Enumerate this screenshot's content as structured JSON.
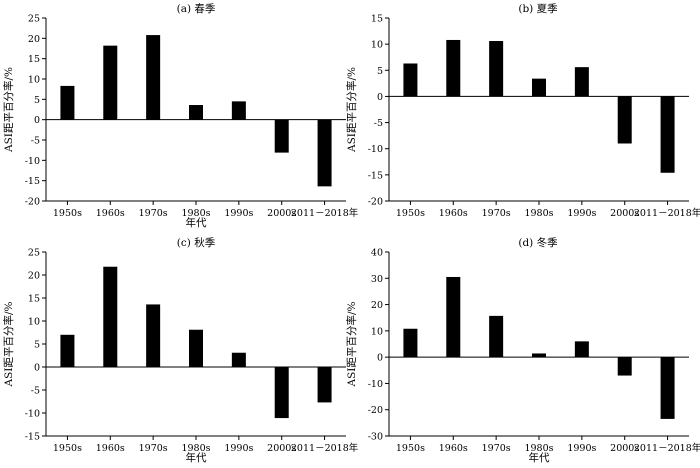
{
  "chart_data": [
    {
      "type": "bar",
      "title": "(a) 春季",
      "xlabel": "年代",
      "ylabel": "ASI距平百分率/%",
      "categories": [
        "1950s",
        "1960s",
        "1970s",
        "1980s",
        "1990s",
        "2000s",
        "2011－2018年"
      ],
      "values": [
        8.3,
        18.2,
        20.8,
        3.6,
        4.5,
        -8.1,
        -16.4
      ],
      "ylim": [
        -20,
        25
      ],
      "yticks": [
        -20,
        -15,
        -10,
        -5,
        0,
        5,
        10,
        15,
        20,
        25
      ],
      "grid": false
    },
    {
      "type": "bar",
      "title": "(b) 夏季",
      "xlabel": "",
      "ylabel": "ASI距平百分率/%",
      "categories": [
        "1950s",
        "1960s",
        "1970s",
        "1980s",
        "1990s",
        "2000s",
        "2011－2018年"
      ],
      "values": [
        6.3,
        10.8,
        10.6,
        3.4,
        5.6,
        -9.0,
        -14.6
      ],
      "ylim": [
        -20,
        15
      ],
      "yticks": [
        -20,
        -15,
        -10,
        -5,
        0,
        5,
        10,
        15
      ],
      "grid": false
    },
    {
      "type": "bar",
      "title": "(c) 秋季",
      "xlabel": "年代",
      "ylabel": "ASI距平百分率/%",
      "categories": [
        "1950s",
        "1960s",
        "1970s",
        "1980s",
        "1990s",
        "2000s",
        "2011－2018年"
      ],
      "values": [
        7.0,
        21.8,
        13.6,
        8.1,
        3.1,
        -11.1,
        -7.7
      ],
      "ylim": [
        -15,
        25
      ],
      "yticks": [
        -15,
        -10,
        -5,
        0,
        5,
        10,
        15,
        20,
        25
      ],
      "grid": false
    },
    {
      "type": "bar",
      "title": "(d) 冬季",
      "xlabel": "年代",
      "ylabel": "ASI距平百分率/%",
      "categories": [
        "1950s",
        "1960s",
        "1970s",
        "1980s",
        "1990s",
        "2000s",
        "2011－2018年"
      ],
      "values": [
        10.8,
        30.5,
        15.7,
        1.4,
        6.0,
        -7.0,
        -23.5
      ],
      "ylim": [
        -30,
        40
      ],
      "yticks": [
        -30,
        -20,
        -10,
        0,
        10,
        20,
        30,
        40
      ],
      "grid": false
    }
  ]
}
